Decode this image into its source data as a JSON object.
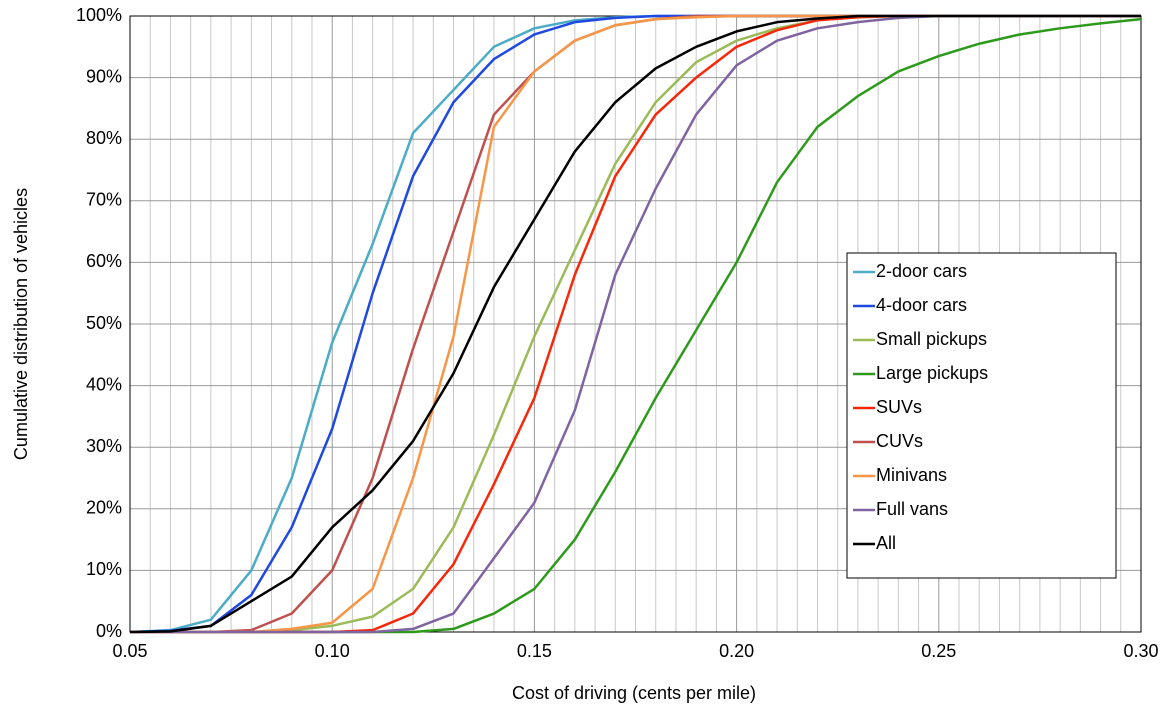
{
  "chart_data": {
    "type": "line",
    "x_label": "Cost of driving (cents per mile)",
    "y_label": "Cumulative distribution of vehicles",
    "x": [
      0.05,
      0.06,
      0.07,
      0.08,
      0.09,
      0.1,
      0.11,
      0.12,
      0.13,
      0.14,
      0.15,
      0.16,
      0.17,
      0.18,
      0.19,
      0.2,
      0.21,
      0.22,
      0.23,
      0.24,
      0.25,
      0.26,
      0.27,
      0.28,
      0.29,
      0.3
    ],
    "series": [
      {
        "name": "2-door cars",
        "color": "#4bacc6",
        "values": [
          0,
          0.3,
          2,
          10,
          25,
          47,
          63,
          81,
          88,
          95,
          98,
          99.3,
          99.8,
          100,
          100,
          100,
          100,
          100,
          100,
          100,
          100,
          100,
          100,
          100,
          100,
          100
        ]
      },
      {
        "name": "4-door cars",
        "color": "#1f49e0",
        "values": [
          0,
          0.2,
          1,
          6,
          17,
          33,
          55,
          74,
          86,
          93,
          97,
          99,
          99.7,
          100,
          100,
          100,
          100,
          100,
          100,
          100,
          100,
          100,
          100,
          100,
          100,
          100
        ]
      },
      {
        "name": "Small pickups",
        "color": "#9bbb59",
        "values": [
          0,
          0,
          0,
          0,
          0.3,
          1,
          2.5,
          7,
          17,
          32,
          48,
          62,
          76,
          86,
          92.5,
          96,
          98,
          99.3,
          99.8,
          100,
          100,
          100,
          100,
          100,
          100,
          100
        ]
      },
      {
        "name": "Large pickups",
        "color": "#2e9a1c",
        "values": [
          0,
          0,
          0,
          0,
          0,
          0,
          0,
          0,
          0.5,
          3,
          7,
          15,
          26,
          38,
          49,
          60,
          73,
          82,
          87,
          91,
          93.5,
          95.5,
          97,
          98,
          98.8,
          99.5
        ]
      },
      {
        "name": "SUVs",
        "color": "#f5280a",
        "values": [
          0,
          0,
          0,
          0,
          0,
          0,
          0.3,
          3,
          11,
          24,
          38,
          58,
          74,
          84,
          90,
          95,
          97.7,
          99.3,
          99.8,
          100,
          100,
          100,
          100,
          100,
          100,
          100
        ]
      },
      {
        "name": "CUVs",
        "color": "#c0504d",
        "values": [
          0,
          0,
          0,
          0.3,
          3,
          10,
          25,
          46,
          65,
          84,
          91,
          96,
          98.5,
          99.5,
          100,
          100,
          100,
          100,
          100,
          100,
          100,
          100,
          100,
          100,
          100,
          100
        ]
      },
      {
        "name": "Minivans",
        "color": "#f79646",
        "values": [
          0,
          0,
          0,
          0,
          0.5,
          1.5,
          7,
          25,
          48,
          82,
          91,
          96,
          98.5,
          99.5,
          99.8,
          100,
          100,
          100,
          100,
          100,
          100,
          100,
          100,
          100,
          100,
          100
        ]
      },
      {
        "name": "Full vans",
        "color": "#8064a2",
        "values": [
          0,
          0,
          0,
          0,
          0,
          0,
          0,
          0.5,
          3,
          12,
          21,
          36,
          58,
          72,
          84,
          92,
          96,
          98,
          99,
          99.7,
          100,
          100,
          100,
          100,
          100,
          100
        ]
      },
      {
        "name": "All",
        "color": "#000000",
        "values": [
          0,
          0.1,
          1,
          5,
          9,
          17,
          23,
          31,
          42,
          56,
          67,
          78,
          86,
          91.5,
          95,
          97.5,
          99,
          99.6,
          100,
          100,
          100,
          100,
          100,
          100,
          100,
          100
        ]
      }
    ],
    "xlim": [
      0.05,
      0.3
    ],
    "xticks": [
      {
        "value": 0.05,
        "label": "0.05"
      },
      {
        "value": 0.1,
        "label": "0.10"
      },
      {
        "value": 0.15,
        "label": "0.15"
      },
      {
        "value": 0.2,
        "label": "0.20"
      },
      {
        "value": 0.25,
        "label": "0.25"
      },
      {
        "value": 0.3,
        "label": "0.30"
      }
    ],
    "ylim": [
      0,
      100
    ],
    "yticks": [
      {
        "value": 0,
        "label": "0%"
      },
      {
        "value": 10,
        "label": "10%"
      },
      {
        "value": 20,
        "label": "20%"
      },
      {
        "value": 30,
        "label": "30%"
      },
      {
        "value": 40,
        "label": "40%"
      },
      {
        "value": 50,
        "label": "50%"
      },
      {
        "value": 60,
        "label": "60%"
      },
      {
        "value": 70,
        "label": "70%"
      },
      {
        "value": 80,
        "label": "80%"
      },
      {
        "value": 90,
        "label": "90%"
      },
      {
        "value": 100,
        "label": "100%"
      }
    ],
    "grid": true,
    "minor_grid": true,
    "legend": "right"
  }
}
